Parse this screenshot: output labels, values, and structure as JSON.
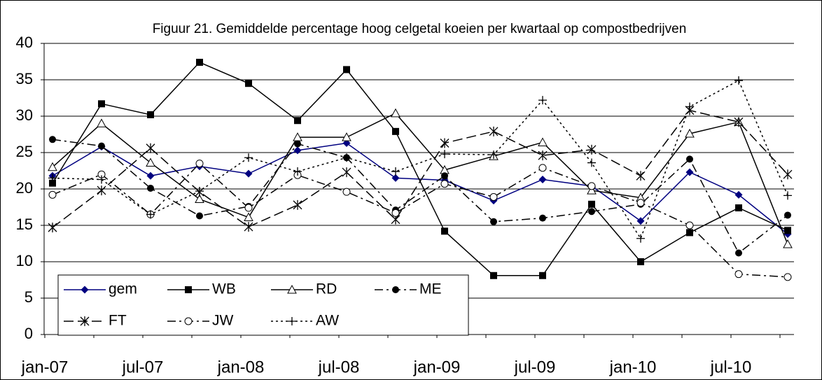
{
  "chart_data": {
    "type": "line",
    "title": "Figuur 21. Gemiddelde percentage hoog celgetal koeien per kwartaal op compostbedrijven",
    "categories": [
      "jan-07",
      null,
      "jul-07",
      null,
      "jan-08",
      null,
      "jul-08",
      null,
      "jan-09",
      null,
      "jul-09",
      null,
      "jan-10",
      null,
      "jul-10",
      null
    ],
    "ylim": [
      0,
      40
    ],
    "yticks": [
      0,
      5,
      10,
      15,
      20,
      25,
      30,
      35,
      40
    ],
    "grid": true,
    "legend": "bottom-left",
    "series": [
      {
        "name": "gem",
        "color": "#000080",
        "marker": "diamond",
        "line_style": "solid",
        "values": [
          21.8,
          25.8,
          21.8,
          23.1,
          22.1,
          25.3,
          26.3,
          21.5,
          21.2,
          18.4,
          21.3,
          20.4,
          15.6,
          22.3,
          19.2,
          13.8
        ]
      },
      {
        "name": "WB",
        "color": "#000000",
        "marker": "square",
        "line_style": "solid",
        "values": [
          20.8,
          31.7,
          30.2,
          37.4,
          34.5,
          29.4,
          36.4,
          27.9,
          14.2,
          8.1,
          8.1,
          17.9,
          10.0,
          14.0,
          17.4,
          14.3
        ]
      },
      {
        "name": "RD",
        "color": "#000000",
        "marker": "triangle",
        "line_style": "solid",
        "values": [
          23.0,
          29.0,
          23.6,
          18.6,
          16.1,
          27.1,
          27.1,
          30.4,
          22.6,
          24.5,
          26.4,
          19.8,
          18.8,
          27.6,
          29.2,
          12.4
        ]
      },
      {
        "name": "ME",
        "color": "#000000",
        "marker": "circle",
        "line_style": "dashdot",
        "values": [
          26.8,
          25.9,
          20.1,
          16.3,
          17.6,
          26.2,
          24.3,
          17.1,
          21.8,
          15.5,
          16.0,
          16.9,
          17.9,
          24.1,
          11.2,
          16.4
        ]
      },
      {
        "name": "FT",
        "color": "#000000",
        "marker": "asterisk",
        "line_style": "dash",
        "values": [
          14.7,
          19.8,
          25.6,
          19.6,
          14.8,
          17.8,
          22.3,
          15.8,
          26.3,
          27.9,
          24.6,
          25.4,
          21.8,
          30.8,
          29.2,
          22.0
        ]
      },
      {
        "name": "JW",
        "color": "#000000",
        "marker": "open-circle",
        "line_style": "dashdot",
        "values": [
          19.2,
          22.0,
          16.5,
          23.5,
          17.4,
          21.9,
          19.6,
          16.7,
          20.7,
          18.9,
          22.9,
          20.4,
          18.1,
          15.0,
          8.3,
          7.9
        ]
      },
      {
        "name": "AW",
        "color": "#000000",
        "marker": "plus",
        "line_style": "dot",
        "values": [
          21.5,
          21.3,
          16.5,
          19.7,
          24.3,
          22.4,
          24.3,
          22.4,
          24.8,
          24.7,
          32.2,
          23.6,
          13.2,
          31.3,
          34.9,
          19.1
        ]
      }
    ]
  }
}
